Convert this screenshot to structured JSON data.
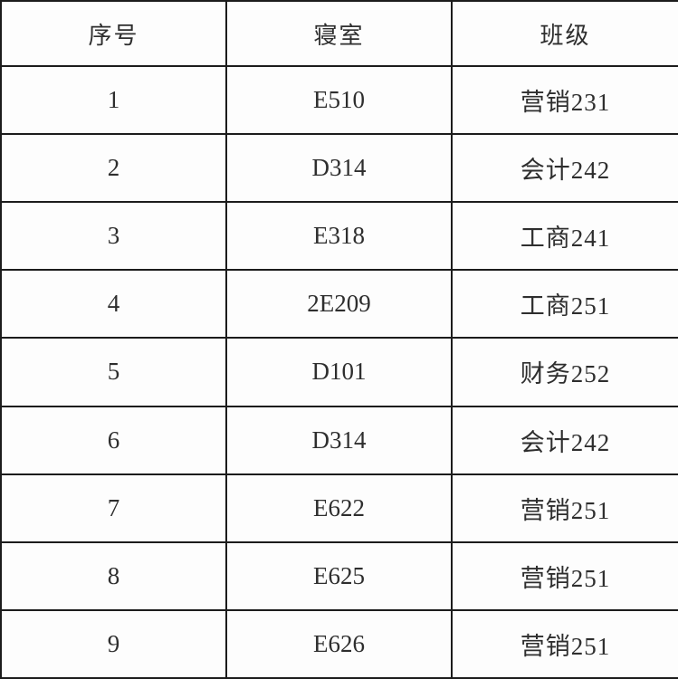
{
  "colors": {
    "background": "#fdfdfd",
    "border": "#1c1c1c",
    "text": "#2e2e2e"
  },
  "table": {
    "columns": [
      {
        "key": "index",
        "label": "序号"
      },
      {
        "key": "dorm",
        "label": "寝室"
      },
      {
        "key": "class",
        "label": "班级"
      }
    ],
    "rows": [
      {
        "index": "1",
        "dorm": "E510",
        "class": "营销231"
      },
      {
        "index": "2",
        "dorm": "D314",
        "class": "会计242"
      },
      {
        "index": "3",
        "dorm": "E318",
        "class": "工商241"
      },
      {
        "index": "4",
        "dorm": "2E209",
        "class": "工商251"
      },
      {
        "index": "5",
        "dorm": "D101",
        "class": "财务252"
      },
      {
        "index": "6",
        "dorm": "D314",
        "class": "会计242"
      },
      {
        "index": "7",
        "dorm": "E622",
        "class": "营销251"
      },
      {
        "index": "8",
        "dorm": "E625",
        "class": "营销251"
      },
      {
        "index": "9",
        "dorm": "E626",
        "class": "营销251"
      }
    ]
  }
}
